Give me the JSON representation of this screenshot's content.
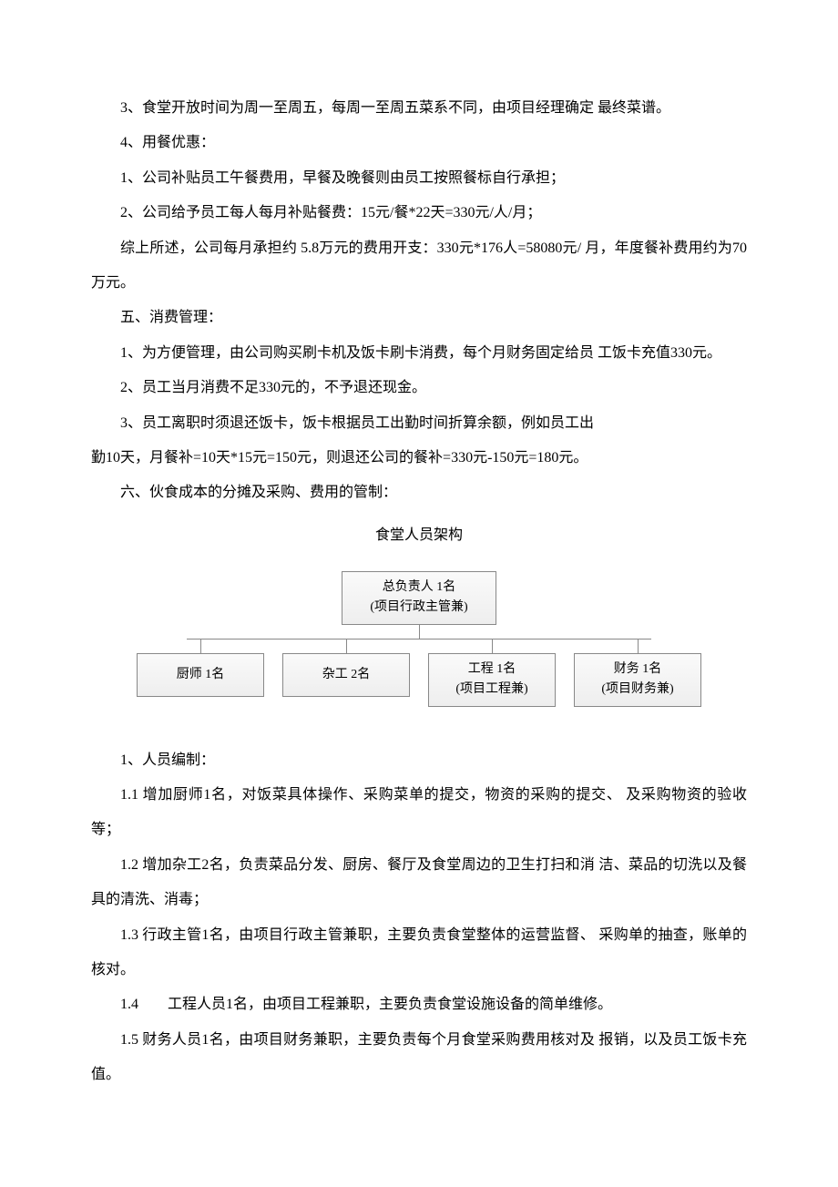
{
  "paragraphs": {
    "p1": "3、食堂开放时间为周一至周五，每周一至周五菜系不同，由项目经理确定 最终菜谱。",
    "p2": "4、用餐优惠：",
    "p3": "1、公司补贴员工午餐费用，早餐及晚餐则由员工按照餐标自行承担；",
    "p4": "2、公司给予员工每人每月补贴餐费：15元/餐*22天=330元/人/月；",
    "p5": "综上所述，公司每月承担约 5.8万元的费用开支：330元*176人=58080元/ 月，年度餐补费用约为70万元。",
    "p6": "五、消费管理：",
    "p7": "1、为方便管理，由公司购买刷卡机及饭卡刷卡消费，每个月财务固定给员 工饭卡充值330元。",
    "p8": "2、员工当月消费不足330元的，不予退还现金。",
    "p9": "3、员工离职时须退还饭卡，饭卡根据员工出勤时间折算余额，例如员工出",
    "p10": "勤10天，月餐补=10天*15元=150元，则退还公司的餐补=330元-150元=180元。",
    "p11": "六、伙食成本的分摊及采购、费用的管制：",
    "p12": "1、人员编制：",
    "p13": "1.1 增加厨师1名，对饭菜具体操作、采购菜单的提交，物资的采购的提交、 及采购物资的验收等；",
    "p14": "1.2 增加杂工2名，负责菜品分发、厨房、餐厅及食堂周边的卫生打扫和消 洁、菜品的切洗以及餐具的清洗、消毒；",
    "p15": "1.3 行政主管1名，由项目行政主管兼职，主要负责食堂整体的运营监督、 采购单的抽查，账单的核对。",
    "p16": "1.4　　工程人员1名，由项目工程兼职，主要负责食堂设施设备的简单维修。",
    "p17": "1.5 财务人员1名，由项目财务兼职，主要负责每个月食堂采购费用核对及 报销，以及员工饭卡充值。"
  },
  "org_chart": {
    "title": "食堂人员架构",
    "top": {
      "line1": "总负责人 1名",
      "line2": "(项目行政主管兼)"
    },
    "bottom": [
      {
        "line1": "厨师 1名",
        "line2": ""
      },
      {
        "line1": "杂工 2名",
        "line2": ""
      },
      {
        "line1": "工程 1名",
        "line2": "(项目工程兼)"
      },
      {
        "line1": "财务 1名",
        "line2": "(项目财务兼)"
      }
    ]
  },
  "styles": {
    "background_color": "#ffffff",
    "text_color": "#000000",
    "font_family": "SimSun",
    "base_font_size": 16,
    "line_height": 2.4,
    "org_box_bg_start": "#fafafa",
    "org_box_bg_end": "#eeeeee",
    "org_border_color": "#888888",
    "org_font_size": 14
  }
}
